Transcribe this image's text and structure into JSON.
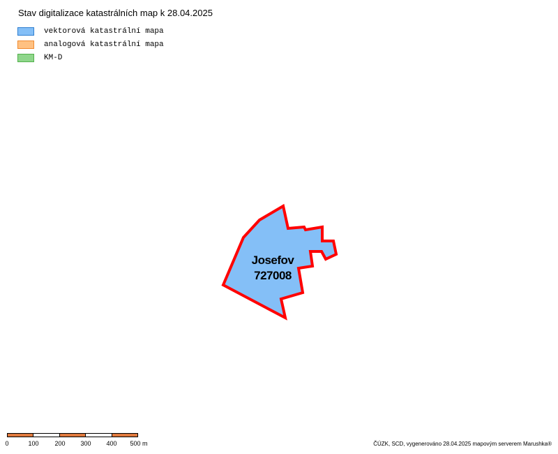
{
  "title": "Stav digitalizace katastrálních map k 28.04.2025",
  "legend": {
    "items": [
      {
        "label": "vektorová katastrální mapa",
        "fill": "#84bff7",
        "stroke": "#2f7fd0"
      },
      {
        "label": "analogová katastrální mapa",
        "fill": "#ffc182",
        "stroke": "#f08a30"
      },
      {
        "label": "KM-D",
        "fill": "#8fd68b",
        "stroke": "#52b04c"
      }
    ]
  },
  "parcel": {
    "name": "Josefov",
    "code": "727008",
    "fill": "#84bff7",
    "outline": "#ff0000"
  },
  "scalebar": {
    "labels": [
      "0",
      "100",
      "200",
      "300",
      "400",
      "500 m"
    ],
    "segment_colors": [
      "#e07a3e",
      "#ffffff",
      "#e07a3e",
      "#ffffff",
      "#e07a3e"
    ]
  },
  "credit": "ČÚZK, SCD, vygenerováno 28.04.2025 mapovým serverem Marushka®"
}
